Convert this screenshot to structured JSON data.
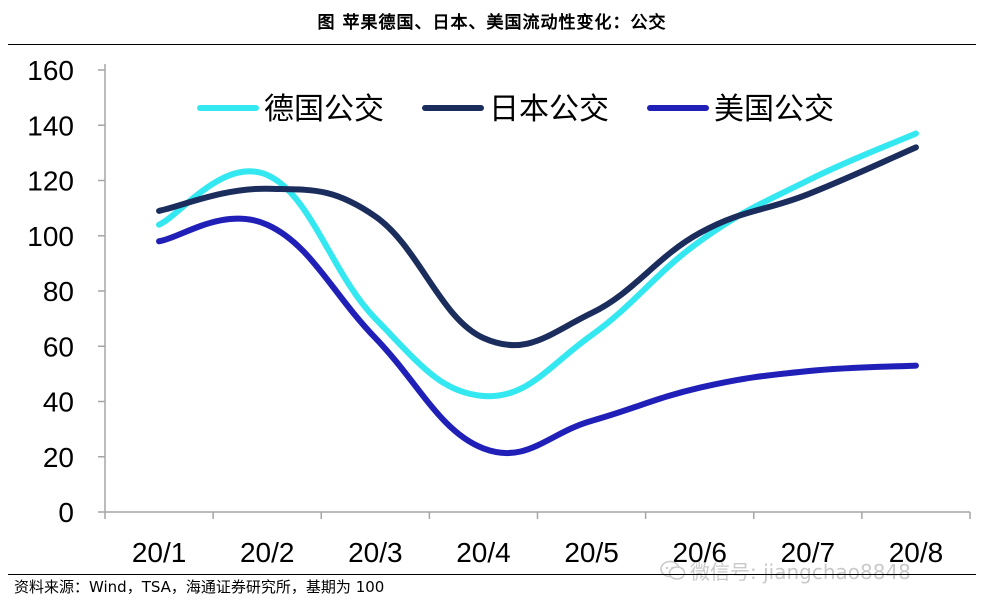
{
  "header": {
    "title": "图  苹果德国、日本、美国流动性变化：公交"
  },
  "footer": {
    "source": "资料来源：Wind，TSA，海通证券研究所，基期为 100",
    "watermark": "微信号: jiangchao8848"
  },
  "chart_data": {
    "type": "line",
    "title": "图  苹果德国、日本、美国流动性变化：公交",
    "xlabel": "",
    "ylabel": "",
    "ylim": [
      0,
      160
    ],
    "yticks": [
      0,
      20,
      40,
      60,
      80,
      100,
      120,
      140,
      160
    ],
    "categories": [
      "20/1",
      "20/2",
      "20/3",
      "20/4",
      "20/5",
      "20/6",
      "20/7",
      "20/8"
    ],
    "grid": false,
    "legend_position": "top",
    "series": [
      {
        "name": "德国公交",
        "color": "#33e8f0",
        "values": [
          104,
          122,
          70,
          42,
          64,
          98,
          120,
          137
        ]
      },
      {
        "name": "日本公交",
        "color": "#1b2d5c",
        "values": [
          109,
          117,
          107,
          63,
          72,
          101,
          115,
          132
        ]
      },
      {
        "name": "美国公交",
        "color": "#2020b8",
        "values": [
          98,
          104,
          63,
          23,
          33,
          45,
          51,
          53
        ]
      }
    ]
  }
}
